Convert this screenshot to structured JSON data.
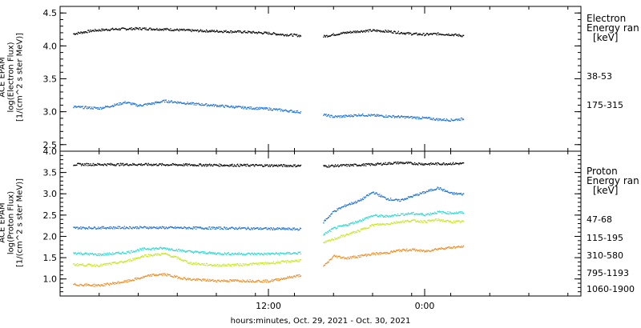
{
  "chart_data": [
    {
      "type": "scatter",
      "panel": "electron",
      "ylabel": [
        "ACE EPAM",
        "log(Electron Flux)",
        "[1/(cm^2 s ster MeV)]"
      ],
      "ylim": [
        2.4,
        4.6
      ],
      "yticks": [
        "4.5",
        "4.0",
        "3.5",
        "3.0",
        "2.5"
      ],
      "yticks_values": [
        4.5,
        4.0,
        3.5,
        3.0,
        2.5
      ],
      "legend_title": [
        "Electron",
        "Energy ran",
        "[keV]"
      ],
      "series": [
        {
          "name": "38-53",
          "color": "#000000",
          "gap": [
            14.5,
            16.2
          ],
          "points": [
            [
              -3.0,
              4.19
            ],
            [
              -1.5,
              4.24
            ],
            [
              0.0,
              4.26
            ],
            [
              2.0,
              4.27
            ],
            [
              4.0,
              4.26
            ],
            [
              6.0,
              4.24
            ],
            [
              8.0,
              4.23
            ],
            [
              10.0,
              4.22
            ],
            [
              12.0,
              4.2
            ],
            [
              13.0,
              4.18
            ],
            [
              14.0,
              4.17
            ],
            [
              14.5,
              4.16
            ],
            [
              16.2,
              4.15
            ],
            [
              17.0,
              4.18
            ],
            [
              18.0,
              4.21
            ],
            [
              19.0,
              4.23
            ],
            [
              20.0,
              4.24
            ],
            [
              21.0,
              4.23
            ],
            [
              22.0,
              4.21
            ],
            [
              23.0,
              4.19
            ],
            [
              24.0,
              4.18
            ],
            [
              25.0,
              4.19
            ],
            [
              26.0,
              4.18
            ],
            [
              27.0,
              4.16
            ]
          ]
        },
        {
          "name": "175-315",
          "color": "#1a6fd6",
          "gap": [
            14.5,
            16.2
          ],
          "points": [
            [
              -3.0,
              3.08
            ],
            [
              -1.0,
              3.06
            ],
            [
              0.0,
              3.1
            ],
            [
              1.0,
              3.15
            ],
            [
              2.0,
              3.1
            ],
            [
              3.0,
              3.13
            ],
            [
              4.0,
              3.17
            ],
            [
              5.0,
              3.15
            ],
            [
              6.0,
              3.13
            ],
            [
              8.0,
              3.1
            ],
            [
              10.0,
              3.07
            ],
            [
              12.0,
              3.05
            ],
            [
              14.0,
              3.01
            ],
            [
              14.5,
              3.0
            ],
            [
              16.2,
              2.96
            ],
            [
              17.0,
              2.93
            ],
            [
              18.0,
              2.94
            ],
            [
              19.0,
              2.96
            ],
            [
              20.0,
              2.95
            ],
            [
              21.0,
              2.94
            ],
            [
              22.0,
              2.93
            ],
            [
              23.0,
              2.92
            ],
            [
              24.0,
              2.91
            ],
            [
              25.0,
              2.89
            ],
            [
              26.0,
              2.88
            ],
            [
              27.0,
              2.9
            ]
          ]
        }
      ]
    },
    {
      "type": "scatter",
      "panel": "proton",
      "ylabel": [
        "ACE EPAM",
        "log(Proton Flux)",
        "[1/(cm^2 s ster MeV)]"
      ],
      "ylim": [
        0.6,
        4.0
      ],
      "yticks": [
        "4.0",
        "3.5",
        "3.0",
        "2.5",
        "2.0",
        "1.5",
        "1.0"
      ],
      "yticks_values": [
        4.0,
        3.5,
        3.0,
        2.5,
        2.0,
        1.5,
        1.0
      ],
      "legend_title": [
        "Proton",
        "Energy ran",
        "[keV]"
      ],
      "series": [
        {
          "name": "47-68",
          "color": "#000000",
          "gap": [
            14.5,
            16.2
          ],
          "points": [
            [
              -3.0,
              3.7
            ],
            [
              2.0,
              3.7
            ],
            [
              6.0,
              3.69
            ],
            [
              10.0,
              3.68
            ],
            [
              14.5,
              3.67
            ],
            [
              16.2,
              3.66
            ],
            [
              20.0,
              3.7
            ],
            [
              22.0,
              3.74
            ],
            [
              24.0,
              3.71
            ],
            [
              26.0,
              3.72
            ],
            [
              27.0,
              3.72
            ]
          ]
        },
        {
          "name": "115-195",
          "color": "#1a6fd6",
          "gap": [
            14.5,
            16.2
          ],
          "points": [
            [
              -3.0,
              2.21
            ],
            [
              2.0,
              2.22
            ],
            [
              6.0,
              2.21
            ],
            [
              10.0,
              2.2
            ],
            [
              14.5,
              2.18
            ],
            [
              16.2,
              2.35
            ],
            [
              17.0,
              2.6
            ],
            [
              18.0,
              2.75
            ],
            [
              19.0,
              2.85
            ],
            [
              20.0,
              3.05
            ],
            [
              21.0,
              2.9
            ],
            [
              22.0,
              2.85
            ],
            [
              23.0,
              2.95
            ],
            [
              24.0,
              3.05
            ],
            [
              25.0,
              3.15
            ],
            [
              26.0,
              3.02
            ],
            [
              27.0,
              3.0
            ]
          ]
        },
        {
          "name": "310-580",
          "color": "#2ad8d0",
          "gap": [
            14.5,
            16.2
          ],
          "points": [
            [
              -3.0,
              1.62
            ],
            [
              -1.0,
              1.58
            ],
            [
              1.0,
              1.63
            ],
            [
              2.5,
              1.72
            ],
            [
              4.0,
              1.73
            ],
            [
              6.0,
              1.65
            ],
            [
              8.0,
              1.61
            ],
            [
              10.0,
              1.6
            ],
            [
              12.0,
              1.6
            ],
            [
              14.5,
              1.62
            ],
            [
              16.2,
              2.05
            ],
            [
              17.0,
              2.2
            ],
            [
              18.0,
              2.28
            ],
            [
              19.0,
              2.38
            ],
            [
              20.0,
              2.5
            ],
            [
              21.0,
              2.48
            ],
            [
              22.0,
              2.52
            ],
            [
              23.0,
              2.55
            ],
            [
              24.0,
              2.52
            ],
            [
              25.0,
              2.58
            ],
            [
              26.0,
              2.56
            ],
            [
              27.0,
              2.57
            ]
          ]
        },
        {
          "name": "795-1193",
          "color": "#c8e620",
          "gap": [
            14.5,
            16.2
          ],
          "points": [
            [
              -3.0,
              1.35
            ],
            [
              -1.0,
              1.33
            ],
            [
              1.0,
              1.42
            ],
            [
              2.5,
              1.56
            ],
            [
              4.0,
              1.6
            ],
            [
              5.0,
              1.5
            ],
            [
              6.0,
              1.38
            ],
            [
              8.0,
              1.33
            ],
            [
              10.0,
              1.35
            ],
            [
              12.0,
              1.38
            ],
            [
              14.5,
              1.45
            ],
            [
              16.2,
              1.85
            ],
            [
              17.0,
              1.95
            ],
            [
              18.0,
              2.05
            ],
            [
              19.0,
              2.15
            ],
            [
              20.0,
              2.28
            ],
            [
              21.0,
              2.3
            ],
            [
              22.0,
              2.35
            ],
            [
              23.0,
              2.38
            ],
            [
              24.0,
              2.36
            ],
            [
              25.0,
              2.4
            ],
            [
              26.0,
              2.35
            ],
            [
              27.0,
              2.36
            ]
          ]
        },
        {
          "name": "1060-1900",
          "color": "#f08a1c",
          "gap": [
            14.5,
            16.2
          ],
          "points": [
            [
              -3.0,
              0.88
            ],
            [
              -1.0,
              0.86
            ],
            [
              1.0,
              0.95
            ],
            [
              3.0,
              1.1
            ],
            [
              4.0,
              1.12
            ],
            [
              5.0,
              1.05
            ],
            [
              6.0,
              1.0
            ],
            [
              8.0,
              0.97
            ],
            [
              10.0,
              0.97
            ],
            [
              12.0,
              0.96
            ],
            [
              14.5,
              1.1
            ],
            [
              16.2,
              1.3
            ],
            [
              17.0,
              1.55
            ],
            [
              18.0,
              1.5
            ],
            [
              19.0,
              1.55
            ],
            [
              20.0,
              1.6
            ],
            [
              21.0,
              1.62
            ],
            [
              22.0,
              1.68
            ],
            [
              23.0,
              1.7
            ],
            [
              24.0,
              1.66
            ],
            [
              25.0,
              1.72
            ],
            [
              26.0,
              1.75
            ],
            [
              27.0,
              1.77
            ]
          ]
        }
      ]
    }
  ],
  "x_axis": {
    "range_hours": [
      -4.0,
      36.0
    ],
    "tick_labels": [
      "12:00",
      "0:00"
    ],
    "tick_values": [
      12.0,
      24.0
    ],
    "minor_step_hours": 3,
    "title": "hours:minutes, Oct. 29, 2021 - Oct. 30, 2021"
  }
}
